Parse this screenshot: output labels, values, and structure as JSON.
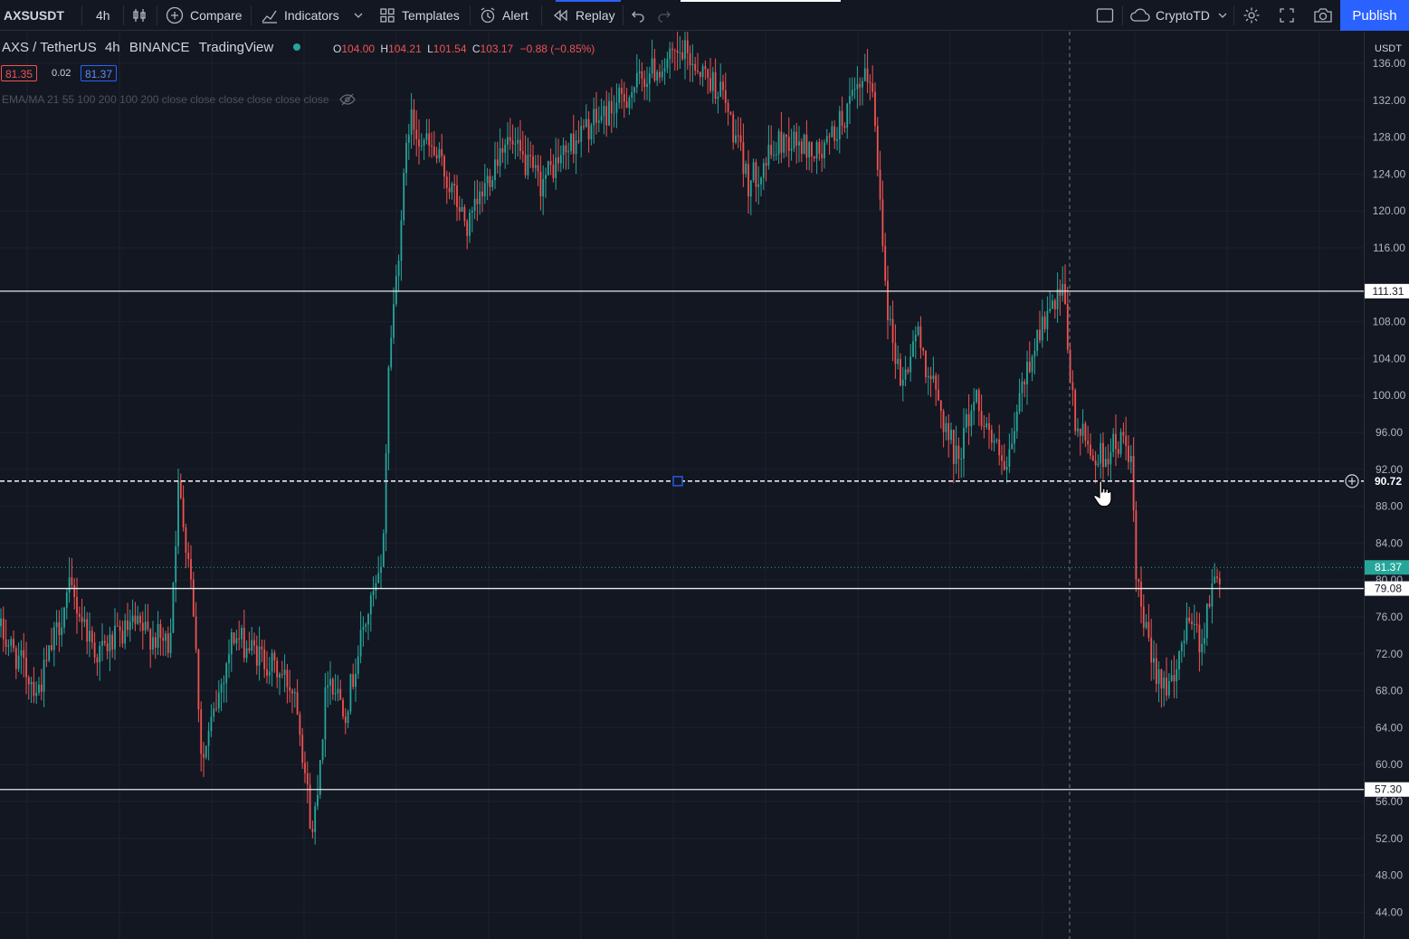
{
  "toolbar": {
    "symbol": "AXSUSDT",
    "interval": "4h",
    "compare_label": "Compare",
    "indicators_label": "Indicators",
    "templates_label": "Templates",
    "alert_label": "Alert",
    "replay_label": "Replay",
    "layout_name": "CryptoTD",
    "publish_label": "Publish"
  },
  "legend": {
    "symbol_desc": "AXS / TetherUS",
    "interval": "4h",
    "exchange": "BINANCE",
    "source": "TradingView",
    "o_label": "O",
    "o_value": "104.00",
    "h_label": "H",
    "h_value": "104.21",
    "l_label": "L",
    "l_value": "101.54",
    "c_label": "C",
    "c_value": "103.17",
    "change": "−0.88 (−0.85%)",
    "bid": "81.35",
    "spread": "0.02",
    "ask": "81.37",
    "indicator": "EMA/MA 21 55 100 200 100 200 close close close close close close"
  },
  "price_scale": {
    "currency": "USDT",
    "ticks": [
      "136.00",
      "132.00",
      "128.00",
      "124.00",
      "120.00",
      "116.00",
      "108.00",
      "104.00",
      "100.00",
      "96.00",
      "92.00",
      "88.00",
      "84.00",
      "80.00",
      "76.00",
      "72.00",
      "68.00",
      "64.00",
      "60.00",
      "56.00",
      "52.00",
      "48.00",
      "44.00"
    ]
  },
  "horizontal_lines": [
    {
      "price": 111.31,
      "label": "111.31",
      "style": "solid"
    },
    {
      "price": 90.72,
      "label": "90.72",
      "style": "dashed"
    },
    {
      "price": 79.08,
      "label": "79.08",
      "style": "solid"
    },
    {
      "price": 57.3,
      "label": "57.30",
      "style": "solid"
    }
  ],
  "last_price": {
    "price": 81.37,
    "label": "81.37"
  },
  "colors": {
    "background": "#131722",
    "up": "#26a69a",
    "down": "#ef5350",
    "accent": "#2962ff",
    "line": "#d1d4dc"
  },
  "chart_data": {
    "type": "candlestick",
    "symbol": "AXSUSDT",
    "interval": "4h",
    "ylim": [
      42,
      138
    ],
    "anchors": [
      [
        0,
        75
      ],
      [
        45,
        68
      ],
      [
        80,
        79
      ],
      [
        110,
        72
      ],
      [
        150,
        75
      ],
      [
        190,
        73
      ],
      [
        200,
        90
      ],
      [
        215,
        80
      ],
      [
        226,
        60
      ],
      [
        260,
        74
      ],
      [
        300,
        71
      ],
      [
        330,
        68
      ],
      [
        348,
        52
      ],
      [
        365,
        70
      ],
      [
        385,
        66
      ],
      [
        405,
        75
      ],
      [
        425,
        81
      ],
      [
        433,
        105
      ],
      [
        440,
        112
      ],
      [
        455,
        130
      ],
      [
        490,
        125
      ],
      [
        520,
        118
      ],
      [
        560,
        128
      ],
      [
        600,
        123
      ],
      [
        640,
        128
      ],
      [
        690,
        132
      ],
      [
        720,
        135
      ],
      [
        760,
        137
      ],
      [
        800,
        133
      ],
      [
        830,
        123
      ],
      [
        870,
        128
      ],
      [
        910,
        126
      ],
      [
        940,
        131
      ],
      [
        965,
        135
      ],
      [
        975,
        122
      ],
      [
        985,
        108
      ],
      [
        1000,
        101
      ],
      [
        1015,
        107
      ],
      [
        1040,
        99
      ],
      [
        1060,
        93
      ],
      [
        1080,
        100
      ],
      [
        1100,
        95
      ],
      [
        1115,
        91
      ],
      [
        1130,
        100
      ],
      [
        1150,
        107
      ],
      [
        1178,
        111
      ],
      [
        1190,
        97
      ],
      [
        1215,
        93
      ],
      [
        1240,
        95
      ],
      [
        1252,
        94
      ],
      [
        1258,
        80
      ],
      [
        1275,
        71
      ],
      [
        1300,
        68
      ],
      [
        1315,
        77
      ],
      [
        1330,
        73
      ],
      [
        1340,
        78
      ],
      [
        1348,
        81
      ]
    ]
  }
}
